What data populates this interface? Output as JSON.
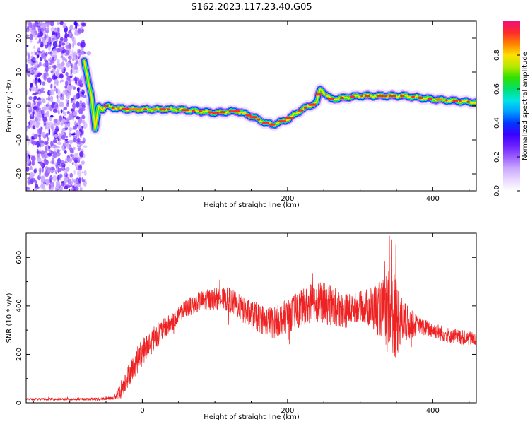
{
  "title": "S162.2023.117.23.40.G05",
  "colors": {
    "snr_line": "#ee2222",
    "colormap": [
      "#ffffff",
      "#e8d6ff",
      "#c9a8ff",
      "#9b5cff",
      "#6a1fff",
      "#3a00ff",
      "#0038ff",
      "#009fff",
      "#00e5e5",
      "#00e070",
      "#30e000",
      "#b8e800",
      "#ffe000",
      "#ff8000",
      "#ff2a2a",
      "#ee1177"
    ]
  },
  "chart_data": [
    {
      "type": "heatmap",
      "xlabel": "Height of straight line (km)",
      "ylabel": "Frequency (Hz)",
      "xlim": [
        -160,
        460
      ],
      "ylim": [
        -25,
        25
      ],
      "xticks": [
        0,
        200,
        400
      ],
      "yticks": [
        -20,
        -10,
        0,
        10,
        20
      ],
      "colorbar": {
        "label": "Normalized spectral amplitude",
        "range": [
          0.0,
          1.0
        ],
        "ticks": [
          0.0,
          0.2,
          0.4,
          0.6,
          0.8
        ]
      },
      "noise_region_x": [
        -160,
        -80
      ],
      "ridge": {
        "x": [
          -80,
          -70,
          -65,
          -60,
          -55,
          -50,
          -40,
          -20,
          0,
          50,
          100,
          130,
          150,
          170,
          180,
          200,
          220,
          240,
          245,
          260,
          300,
          360,
          400,
          460
        ],
        "y": [
          13,
          3,
          -7,
          0,
          -1,
          0,
          -0.5,
          -1,
          -1,
          -1,
          -2,
          -1.5,
          -3,
          -5,
          -5.5,
          -4,
          -1,
          1,
          5,
          2,
          3,
          3,
          2,
          1
        ]
      }
    },
    {
      "type": "line",
      "xlabel": "Height of straight line (km)",
      "ylabel": "SNR (10 * v/v)",
      "xlim": [
        -160,
        460
      ],
      "ylim": [
        0,
        700
      ],
      "xticks": [
        0,
        200,
        400
      ],
      "yticks": [
        0,
        200,
        400,
        600
      ],
      "envelope": {
        "x": [
          -160,
          -60,
          -40,
          -30,
          -20,
          -10,
          0,
          20,
          40,
          60,
          80,
          100,
          120,
          140,
          160,
          180,
          200,
          220,
          240,
          260,
          280,
          300,
          320,
          340,
          360,
          380,
          400,
          420,
          440,
          460
        ],
        "y": [
          15,
          15,
          20,
          50,
          110,
          160,
          210,
          280,
          330,
          390,
          420,
          430,
          425,
          380,
          350,
          330,
          360,
          390,
          420,
          400,
          380,
          400,
          390,
          380,
          330,
          320,
          300,
          280,
          270,
          260
        ]
      },
      "noise_amplitude": {
        "x": [
          -160,
          -40,
          -30,
          0,
          50,
          200,
          250,
          300,
          330,
          345,
          360,
          380,
          460
        ],
        "y": [
          4,
          6,
          40,
          60,
          35,
          70,
          90,
          60,
          120,
          200,
          90,
          35,
          30
        ]
      }
    }
  ]
}
